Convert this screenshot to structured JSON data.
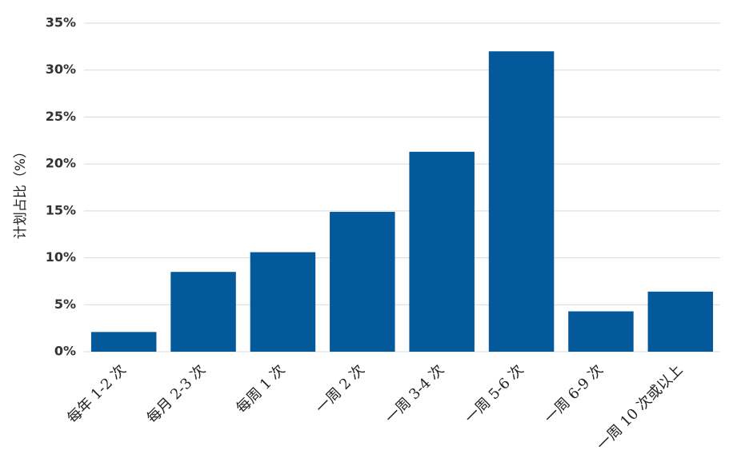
{
  "chart_data": {
    "type": "bar",
    "y_label": "计划占比（%）",
    "categories": [
      "每年 1-2 次",
      "每月 2-3 次",
      "每周 1 次",
      "一周 2 次",
      "一周 3-4 次",
      "一周 5-6 次",
      "一周 6-9 次",
      "一周 10 次或以上"
    ],
    "values": [
      2.1,
      8.5,
      10.6,
      14.9,
      21.3,
      32.0,
      4.3,
      6.4
    ],
    "color": "#03599a",
    "ylim": [
      0,
      35
    ],
    "yticks": [
      {
        "value": 0,
        "label": "0%"
      },
      {
        "value": 5,
        "label": "5%"
      },
      {
        "value": 10,
        "label": "10%"
      },
      {
        "value": 15,
        "label": "15%"
      },
      {
        "value": 20,
        "label": "20%"
      },
      {
        "value": 25,
        "label": "25%"
      },
      {
        "value": 30,
        "label": "30%"
      },
      {
        "value": 35,
        "label": "35%"
      }
    ],
    "grid": true
  }
}
